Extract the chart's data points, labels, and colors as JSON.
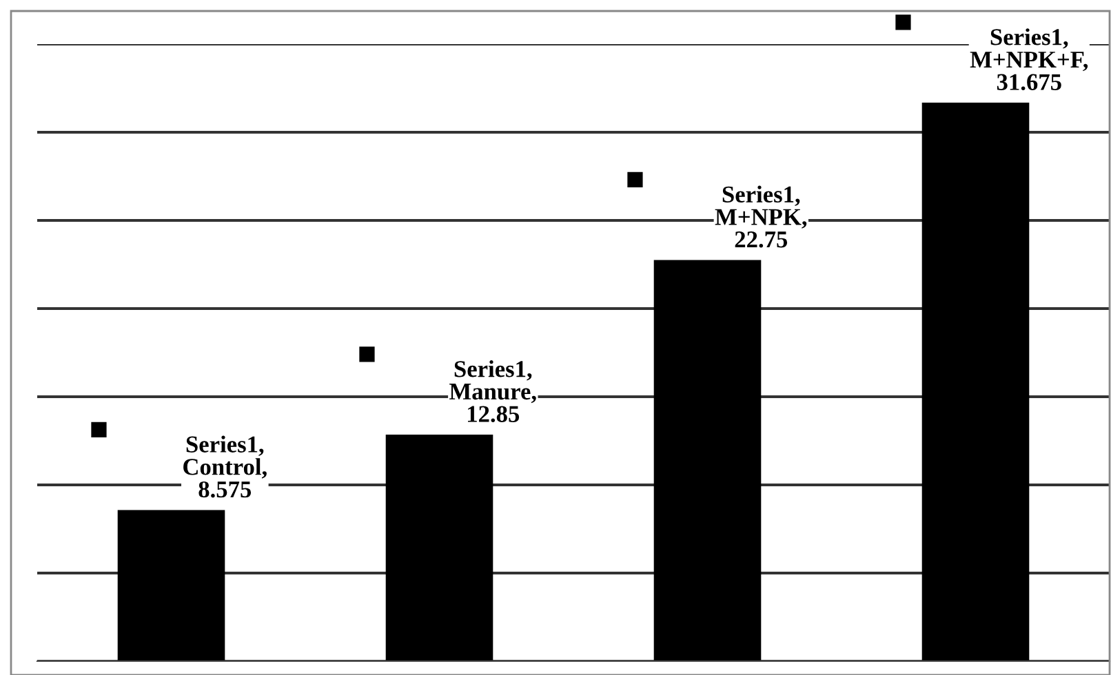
{
  "chart_data": {
    "type": "bar",
    "categories": [
      null,
      null,
      null,
      null
    ],
    "series": [
      {
        "color": "#000000",
        "values": [
          8.575,
          12.85,
          22.75,
          31.675
        ],
        "value_labels": [
          "Series1,\nControl,\n8.575",
          "Series1,\nManure,\n12.85",
          "Series1,\nM+NPK,\n22.75",
          "Series1,\nM+NPK+F,\n31.675"
        ]
      }
    ],
    "ylim": [
      0,
      35
    ],
    "yticks": [
      {
        "value": 0,
        "label": null
      },
      {
        "value": 5,
        "label": null
      },
      {
        "value": 10,
        "label": null
      },
      {
        "value": 15,
        "label": null
      },
      {
        "value": 20,
        "label": null
      },
      {
        "value": 25,
        "label": null
      },
      {
        "value": 30,
        "label": null
      },
      {
        "value": 35,
        "label": null
      }
    ],
    "grid": "y",
    "marker": "square"
  }
}
